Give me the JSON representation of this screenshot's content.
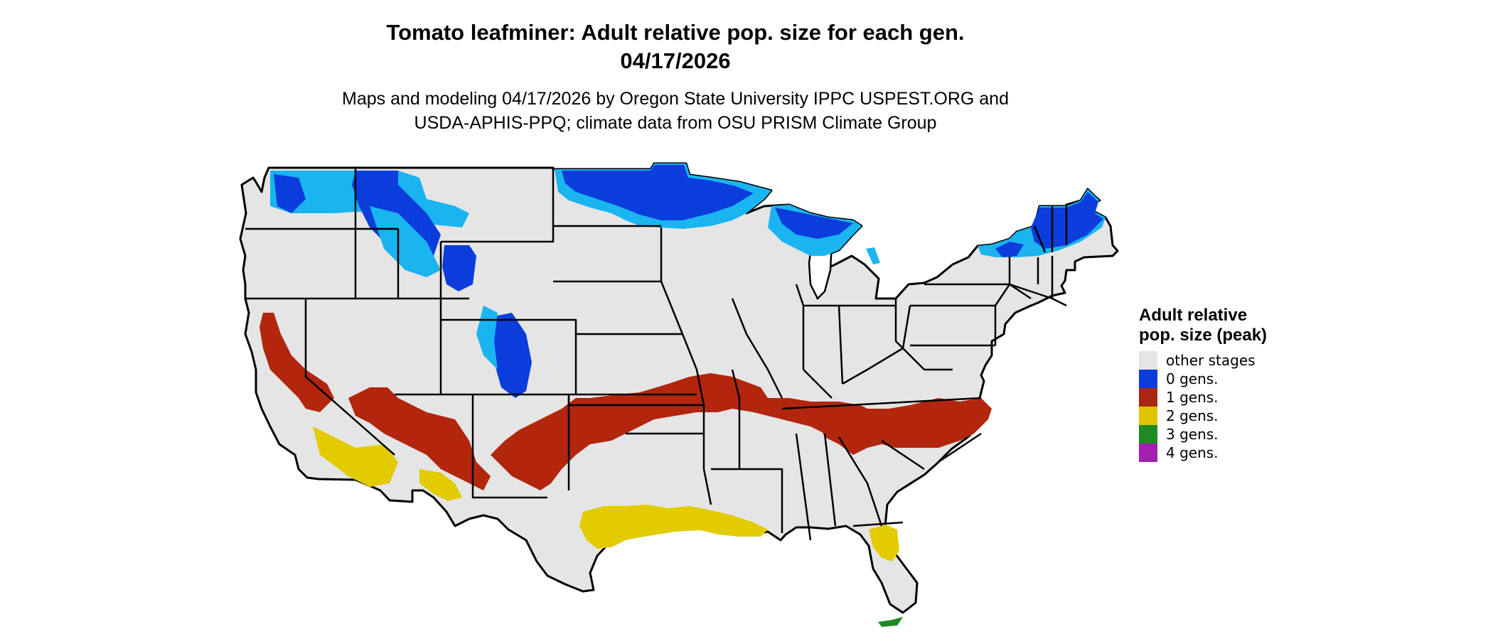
{
  "title_line1": "Tomato leafminer: Adult relative pop. size for each gen.",
  "title_line2": "04/17/2026",
  "subtitle_line1": "Maps and modeling 04/17/2026 by Oregon State University IPPC USPEST.ORG and",
  "subtitle_line2": "USDA-APHIS-PPQ; climate data from OSU PRISM Climate Group",
  "legend": {
    "title": "Adult relative pop. size (peak)",
    "items": [
      {
        "label": "other stages",
        "color": "#e5e5e5"
      },
      {
        "label": "0 gens.",
        "color": "#0a3ddb"
      },
      {
        "label": "1 gens.",
        "color": "#a82712"
      },
      {
        "label": "2 gens.",
        "color": "#dcc600"
      },
      {
        "label": "3 gens.",
        "color": "#1e8a23"
      },
      {
        "label": "4 gens.",
        "color": "#a020b0"
      }
    ]
  },
  "colors": {
    "land": "#e5e5e5",
    "border": "#000000",
    "blue_dark": "#0018c8",
    "blue_light": "#1ab4f0",
    "red": "#b2260e",
    "yellow": "#e2cc00",
    "green": "#1e8a23"
  }
}
